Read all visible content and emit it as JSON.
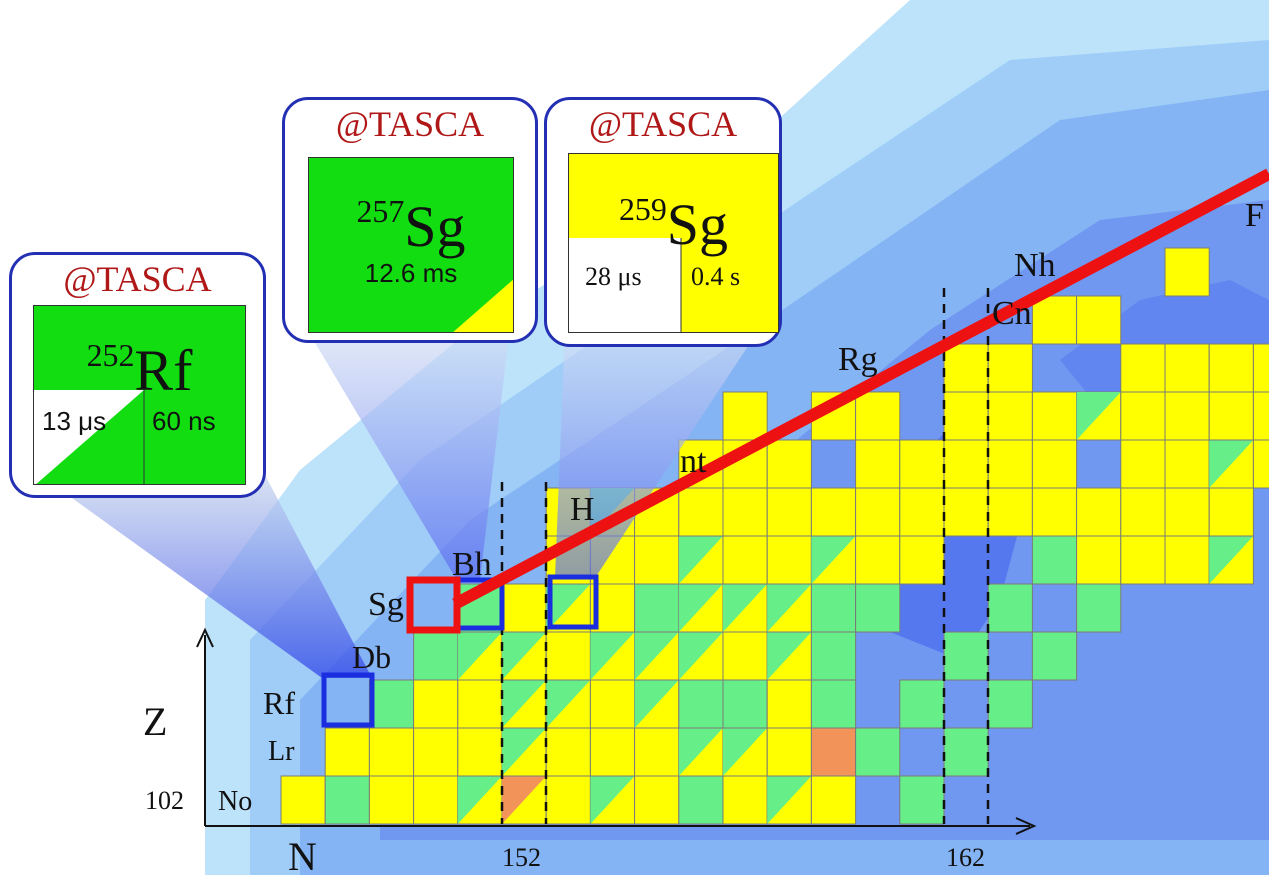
{
  "chart": {
    "x_axis_label": "N",
    "y_axis_label": "Z",
    "x_tick_labels": [
      "152",
      "162"
    ],
    "y_tick_label": "102",
    "element_labels": [
      "No",
      "Lr",
      "Rf",
      "Db",
      "Sg",
      "Bh",
      "H",
      "nt",
      "Rg",
      "Cn",
      "Nh",
      "F"
    ]
  },
  "callouts": [
    {
      "facility": "@TASCA",
      "mass": "252",
      "element": "Rf",
      "halflife_left": "13 μs",
      "halflife_right": "60 ns"
    },
    {
      "facility": "@TASCA",
      "mass": "257",
      "element": "Sg",
      "halflife": "12.6 ms"
    },
    {
      "facility": "@TASCA",
      "mass": "259",
      "element": "Sg",
      "halflife_left": "28 μs",
      "halflife_right": "0.4 s"
    }
  ],
  "colors": {
    "alpha_decay": "#ffff00",
    "fission": "#66ee88",
    "beta_plus": "#f2945a",
    "highlight_blue": "#1a2ee0",
    "highlight_red": "#ee1111",
    "callout_green": "#11dd11"
  }
}
